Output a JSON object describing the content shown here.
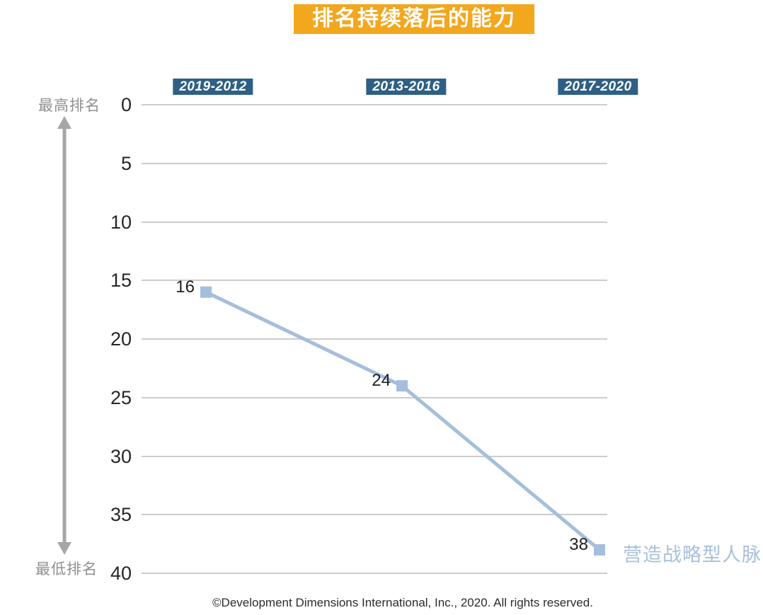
{
  "title": "排名持续落后的能力",
  "periods": [
    "2019-2012",
    "2013-2016",
    "2017-2020"
  ],
  "y_axis": {
    "top_label": "最高排名",
    "bottom_label": "最低排名"
  },
  "legend_label": "营造战略型人脉",
  "footer": "©Development Dimensions International, Inc., 2020. All rights reserved.",
  "colors": {
    "title_bg": "#F3A71D",
    "title_text": "#FFFFFF",
    "period_bg": "#2E5F84",
    "period_text": "#FFFFFF",
    "line": "#A5BEDD",
    "marker": "#A5BEDD",
    "legend_text": "#A8C0DC",
    "grid": "#CCCCCC",
    "arrow": "#A6A6A6",
    "side_label": "#8F8F8F",
    "tick_text": "#262626",
    "data_label": "#1F1F1F",
    "footer_text": "#2B2B2B"
  },
  "chart_data": {
    "type": "line",
    "title": "排名持续落后的能力",
    "categories": [
      "2019-2012",
      "2013-2016",
      "2017-2020"
    ],
    "series": [
      {
        "name": "营造战略型人脉",
        "values": [
          16,
          24,
          38
        ]
      }
    ],
    "data_labels": [
      "16",
      "24",
      "38"
    ],
    "yticks": [
      0,
      5,
      10,
      15,
      20,
      25,
      30,
      35,
      40
    ],
    "ylim": [
      0,
      40
    ],
    "y_axis_inverted": true,
    "y_meaning": "rank position: 0 = 最高排名 (top), 40 = 最低排名 (bottom)",
    "grid": true,
    "marker": "square",
    "legend_position": "right-of-last-point"
  }
}
